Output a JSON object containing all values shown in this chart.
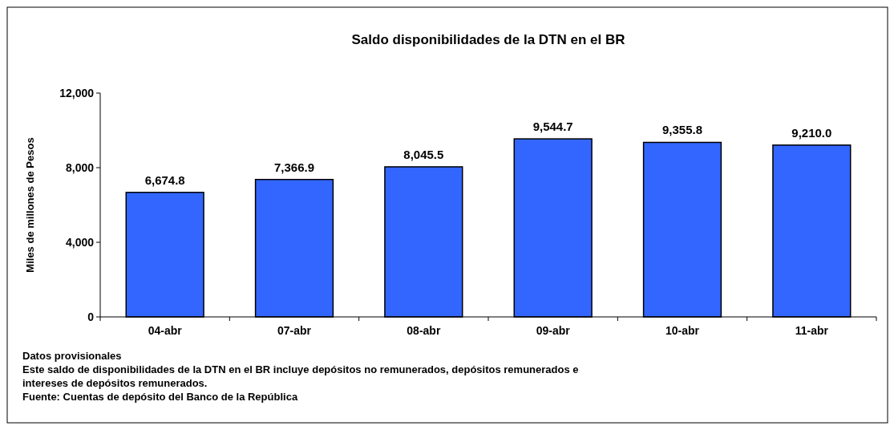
{
  "chart_data": {
    "type": "bar",
    "title": "Saldo disponibilidades  de la DTN en el BR",
    "ylabel": "Miles de millones de Pesos",
    "categories": [
      "04-abr",
      "07-abr",
      "08-abr",
      "09-abr",
      "10-abr",
      "11-abr"
    ],
    "values": [
      6674.8,
      7366.9,
      8045.5,
      9544.7,
      9355.8,
      9210.0
    ],
    "color": "#3366ff",
    "ylim": [
      0,
      12000
    ],
    "yticks": [
      {
        "value": 0,
        "label": "0"
      },
      {
        "value": 4000,
        "label": "4,000"
      },
      {
        "value": 8000,
        "label": "8,000"
      },
      {
        "value": 12000,
        "label": "12,000"
      }
    ],
    "value_labels": [
      "6,674.8",
      "7,366.9",
      "8,045.5",
      "9,544.7",
      "9,355.8",
      "9,210.0"
    ],
    "grid": false,
    "annotations": [
      "Datos provisionales",
      "Este saldo de disponibilidades de la DTN en el BR incluye depósitos no remunerados, depósitos remunerados e intereses de depósitos remunerados.",
      "Fuente: Cuentas de depósito del Banco de la República"
    ]
  }
}
